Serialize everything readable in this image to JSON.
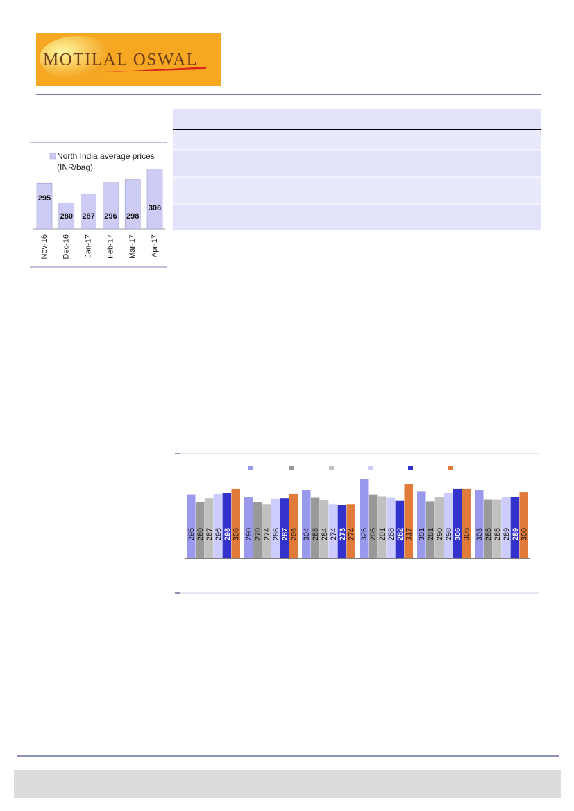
{
  "logo": "MOTILAL OSWAL",
  "chart_data": [
    {
      "type": "bar",
      "categories": [
        "Nov-16",
        "Dec-16",
        "Jan-17",
        "Feb-17",
        "Mar-17",
        "Apr-17"
      ],
      "series": [
        {
          "name": "North India average prices (INR/bag)",
          "color": "#ccccf5",
          "values": [
            295,
            280,
            287,
            296,
            298,
            306
          ]
        }
      ],
      "ylim": [
        260,
        310
      ]
    },
    {
      "type": "grouped-bar",
      "series": [
        {
          "color": "#9999ee",
          "values": [
            295,
            290,
            304,
            326,
            301,
            303
          ]
        },
        {
          "color": "#999999",
          "values": [
            280,
            279,
            288,
            295,
            281,
            285
          ]
        },
        {
          "color": "#c0c0c0",
          "values": [
            287,
            274,
            284,
            291,
            290,
            285
          ]
        },
        {
          "color": "#ccccff",
          "values": [
            296,
            286,
            274,
            288,
            298,
            289
          ]
        },
        {
          "color": "#3333cc",
          "values": [
            298,
            287,
            273,
            282,
            306,
            289
          ]
        },
        {
          "color": "#e07b39",
          "values": [
            306,
            296,
            274,
            317,
            306,
            300
          ]
        }
      ],
      "ylim": [
        163,
        343
      ]
    }
  ]
}
